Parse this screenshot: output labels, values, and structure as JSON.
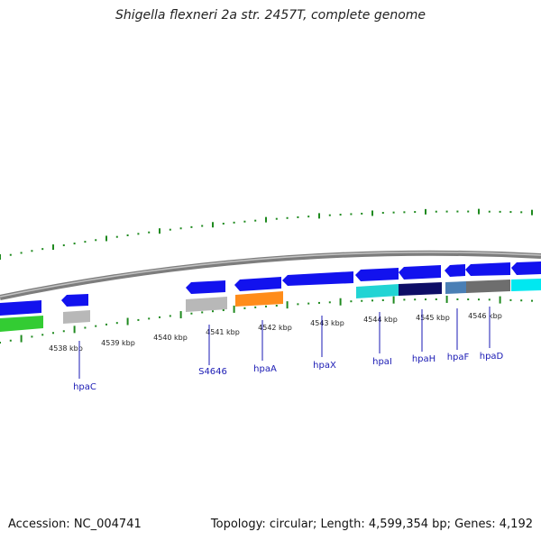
{
  "title": "Shigella flexneri 2a str. 2457T, complete genome",
  "footer": {
    "accession": "Accession: NC_004741",
    "summary": "Topology: circular; Length: 4,599,354 bp; Genes: 4,192"
  },
  "colors": {
    "backbone": "#8a8a8a",
    "tick": "#1f8a1f",
    "gene_label": "#1a1ab4",
    "forward_cds": "#1212ee",
    "green": "#33cc33",
    "gray": "#b8b8b8",
    "orange": "#ff8c1a",
    "cyan": "#22d4d4",
    "navy": "#0d0d66",
    "steel_blue": "#4a7fb5",
    "dark_gray": "#6e6e6e",
    "aqua": "#00e8f0"
  },
  "scale": {
    "ticks": [
      {
        "label": "4538 kbp"
      },
      {
        "label": "4539 kbp"
      },
      {
        "label": "4540 kbp"
      },
      {
        "label": "4541 kbp"
      },
      {
        "label": "4542 kbp"
      },
      {
        "label": "4543 kbp"
      },
      {
        "label": "4544 kbp"
      },
      {
        "label": "4545 kbp"
      },
      {
        "label": "4546 kbp"
      }
    ]
  },
  "gene_labels": [
    "hpaC",
    "S4646",
    "hpaA",
    "hpaX",
    "hpaI",
    "hpaH",
    "hpaF",
    "hpaD"
  ]
}
